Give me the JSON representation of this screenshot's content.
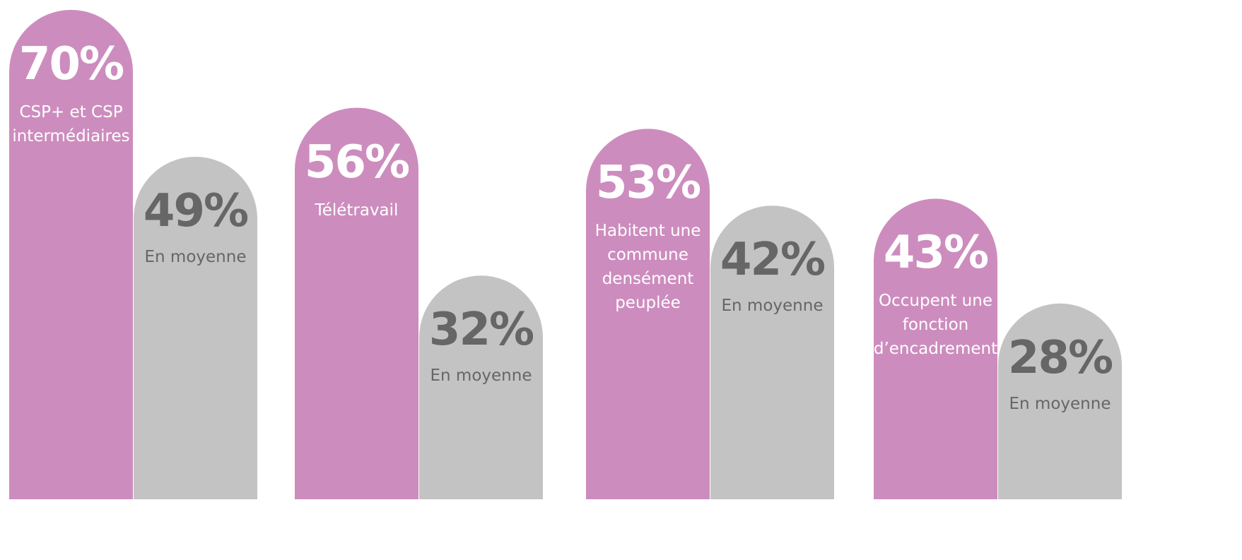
{
  "chart_data": {
    "type": "bar",
    "categories": [
      "CSP+ et CSP intermédiaires",
      "Télétravail",
      "Habitent une commune densément peuplée",
      "Occupent une fonction d’encadrement"
    ],
    "series": [
      {
        "color": "#cd8cbe",
        "values": [
          70,
          56,
          53,
          43
        ],
        "value_labels": [
          "70%",
          "56%",
          "53%",
          "43%"
        ]
      },
      {
        "name": "En moyenne",
        "color": "#c3c3c3",
        "values": [
          49,
          32,
          42,
          28
        ],
        "value_labels": [
          "49%",
          "32%",
          "42%",
          "28%"
        ]
      }
    ]
  }
}
